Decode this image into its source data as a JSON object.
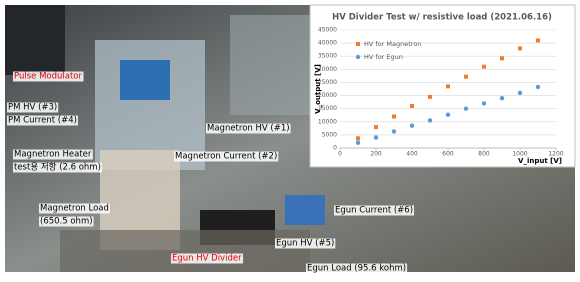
{
  "labels": [
    "Pulse Modulator",
    "PM HV (#3)",
    "PM Current (#4)",
    "Magnetron HV (#1)",
    "Magnetron Heater",
    "test용 저항 (2.6 ohm)",
    "Magnetron  Current (#2)",
    "Egun  Current (#6)",
    "Magnetron Load",
    "(650.5 ohm)",
    "Egun HV (#5)",
    "Egun HV Divider",
    "Egun Load (95.6 kohm)"
  ],
  "chart_data": {
    "type": "scatter",
    "title": "HV Divider Test w/ resistive load (2021.06.16)",
    "x_label": "V_input [V]",
    "y_label": "V_output [V]",
    "x": [
      100,
      200,
      300,
      400,
      500,
      600,
      700,
      800,
      900,
      1000,
      1100
    ],
    "series": [
      {
        "name": "HV for Magnetron",
        "color": "#ed7d31",
        "values": [
          3700,
          8000,
          12000,
          16000,
          19500,
          23500,
          27200,
          31000,
          34200,
          38000,
          41000
        ]
      },
      {
        "name": "HV for Egun",
        "color": "#5b9bd5",
        "values": [
          2000,
          4000,
          6300,
          8500,
          10500,
          12700,
          15000,
          17000,
          19000,
          21000,
          23300
        ]
      }
    ],
    "xlim": [
      0,
      1200
    ],
    "xticks": [
      0,
      200,
      400,
      600,
      800,
      1000,
      1200
    ],
    "ylim": [
      0,
      45000
    ],
    "yticks": [
      0,
      5000,
      10000,
      15000,
      20000,
      25000,
      30000,
      35000,
      40000,
      45000
    ],
    "grid": true,
    "legend": "upper left"
  }
}
